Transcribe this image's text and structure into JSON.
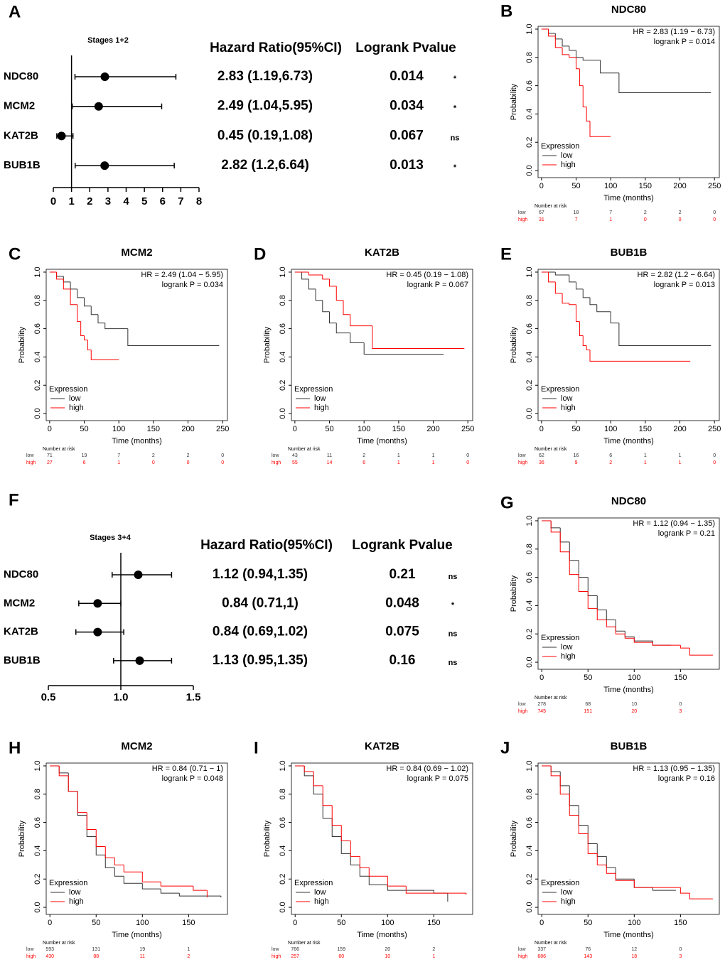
{
  "chart_data": [
    {
      "type": "forest",
      "panel": "A",
      "title": "Stages 1+2",
      "columns": [
        "Hazard Ratio(95%CI)",
        "Logrank Pvalue"
      ],
      "categories": [
        "NDC80",
        "MCM2",
        "KAT2B",
        "BUB1B"
      ],
      "values": [
        2.83,
        2.49,
        0.45,
        2.82
      ],
      "lower": [
        1.19,
        1.04,
        0.19,
        1.2
      ],
      "upper": [
        6.73,
        5.95,
        1.08,
        6.64
      ],
      "hr_labels": [
        "2.83 (1.19,6.73)",
        "2.49 (1.04,5.95)",
        "0.45 (0.19,1.08)",
        "2.82 (1.2,6.64)"
      ],
      "pvalues": [
        0.014,
        0.034,
        0.067,
        0.013
      ],
      "significance": [
        "*",
        "*",
        "ns",
        "*"
      ],
      "xlim": [
        0,
        8
      ],
      "xticks": [
        0,
        1,
        2,
        3,
        4,
        5,
        6,
        7,
        8
      ],
      "reference": 1,
      "color": "#000000"
    },
    {
      "type": "km",
      "panel": "B",
      "title": "NDC80",
      "annotations": [
        "HR = 2.83 (1.19 − 6.73)",
        "logrank P = 0.014"
      ],
      "xlabel": "Time (months)",
      "ylabel": "Probability",
      "legend_title": "Expression",
      "risk_title": "Number at risk",
      "xlim": [
        -5,
        257
      ],
      "xticks": [
        0,
        50,
        100,
        150,
        200,
        250
      ],
      "ylim": [
        -0.05,
        1.02
      ],
      "yticks": [
        {
          "value": 0,
          "label": "0.0"
        },
        0.2,
        0.4,
        0.6,
        0.8,
        {
          "value": 1,
          "label": "1.0"
        }
      ],
      "series": [
        {
          "name": "low",
          "color": "#333333",
          "x": [
            0,
            10,
            20,
            30,
            40,
            50,
            60,
            70,
            85,
            110,
            112,
            245
          ],
          "values": [
            1,
            0.97,
            0.93,
            0.88,
            0.85,
            0.8,
            0.78,
            0.78,
            0.69,
            0.69,
            0.55,
            0.55
          ],
          "at_risk": [
            67,
            18,
            7,
            2,
            2,
            0
          ]
        },
        {
          "name": "high",
          "color": "#ff0000",
          "x": [
            0,
            10,
            20,
            30,
            40,
            50,
            55,
            60,
            65,
            70,
            100
          ],
          "values": [
            1,
            0.95,
            0.87,
            0.82,
            0.8,
            0.72,
            0.6,
            0.45,
            0.35,
            0.24,
            0.24
          ],
          "at_risk": [
            31,
            7,
            1,
            0,
            0,
            0
          ]
        }
      ]
    },
    {
      "type": "km",
      "panel": "C",
      "title": "MCM2",
      "annotations": [
        "HR = 2.49 (1.04 − 5.95)",
        "logrank P = 0.034"
      ],
      "xlabel": "Time (months)",
      "ylabel": "Probability",
      "legend_title": "Expression",
      "risk_title": "Number at risk",
      "xlim": [
        -5,
        257
      ],
      "xticks": [
        0,
        50,
        100,
        150,
        200,
        250
      ],
      "ylim": [
        -0.05,
        1.02
      ],
      "yticks": [
        {
          "value": 0,
          "label": "0.0"
        },
        0.2,
        0.4,
        0.6,
        0.8,
        {
          "value": 1,
          "label": "1.0"
        }
      ],
      "series": [
        {
          "name": "low",
          "color": "#333333",
          "x": [
            0,
            10,
            20,
            30,
            40,
            50,
            60,
            70,
            80,
            100,
            110,
            113,
            245
          ],
          "values": [
            1,
            0.97,
            0.93,
            0.88,
            0.82,
            0.76,
            0.7,
            0.64,
            0.6,
            0.6,
            0.6,
            0.48,
            0.48
          ],
          "at_risk": [
            71,
            19,
            7,
            2,
            2,
            0
          ]
        },
        {
          "name": "high",
          "color": "#ff0000",
          "x": [
            0,
            10,
            20,
            30,
            40,
            45,
            50,
            55,
            60,
            100
          ],
          "values": [
            1,
            0.95,
            0.88,
            0.77,
            0.65,
            0.55,
            0.52,
            0.45,
            0.38,
            0.38
          ],
          "at_risk": [
            27,
            6,
            1,
            0,
            0,
            0
          ]
        }
      ]
    },
    {
      "type": "km",
      "panel": "D",
      "title": "KAT2B",
      "annotations": [
        "HR = 0.45 (0.19 − 1.08)",
        "logrank P = 0.067"
      ],
      "xlabel": "Time (months)",
      "ylabel": "Probability",
      "legend_title": "Expression",
      "risk_title": "Number at risk",
      "xlim": [
        -5,
        257
      ],
      "xticks": [
        0,
        50,
        100,
        150,
        200,
        250
      ],
      "ylim": [
        -0.05,
        1.02
      ],
      "yticks": [
        {
          "value": 0,
          "label": "0.0"
        },
        0.2,
        0.4,
        0.6,
        0.8,
        {
          "value": 1,
          "label": "1.0"
        }
      ],
      "series": [
        {
          "name": "low",
          "color": "#333333",
          "x": [
            0,
            10,
            20,
            30,
            40,
            50,
            60,
            70,
            80,
            100,
            215
          ],
          "values": [
            1,
            0.95,
            0.88,
            0.8,
            0.72,
            0.64,
            0.57,
            0.57,
            0.5,
            0.42,
            0.42
          ],
          "at_risk": [
            43,
            11,
            2,
            1,
            1,
            0
          ]
        },
        {
          "name": "high",
          "color": "#ff0000",
          "x": [
            0,
            20,
            40,
            50,
            60,
            70,
            80,
            100,
            110,
            112,
            245
          ],
          "values": [
            1,
            0.98,
            0.95,
            0.9,
            0.8,
            0.7,
            0.62,
            0.62,
            0.62,
            0.46,
            0.46
          ],
          "at_risk": [
            55,
            14,
            6,
            1,
            1,
            0
          ]
        }
      ]
    },
    {
      "type": "km",
      "panel": "E",
      "title": "BUB1B",
      "annotations": [
        "HR = 2.82 (1.2 − 6.64)",
        "logrank P = 0.013"
      ],
      "xlabel": "Time (months)",
      "ylabel": "Probability",
      "legend_title": "Expression",
      "risk_title": "Number at risk",
      "xlim": [
        -5,
        257
      ],
      "xticks": [
        0,
        50,
        100,
        150,
        200,
        250
      ],
      "ylim": [
        -0.05,
        1.02
      ],
      "yticks": [
        {
          "value": 0,
          "label": "0.0"
        },
        0.2,
        0.4,
        0.6,
        0.8,
        {
          "value": 1,
          "label": "1.0"
        }
      ],
      "series": [
        {
          "name": "low",
          "color": "#333333",
          "x": [
            0,
            20,
            40,
            50,
            60,
            70,
            80,
            100,
            110,
            112,
            245
          ],
          "values": [
            1,
            0.98,
            0.93,
            0.88,
            0.82,
            0.77,
            0.72,
            0.64,
            0.64,
            0.48,
            0.48
          ],
          "at_risk": [
            62,
            16,
            6,
            1,
            1,
            0
          ]
        },
        {
          "name": "high",
          "color": "#ff0000",
          "x": [
            0,
            10,
            20,
            30,
            40,
            50,
            55,
            60,
            65,
            70,
            215
          ],
          "values": [
            1,
            0.93,
            0.85,
            0.78,
            0.77,
            0.65,
            0.55,
            0.48,
            0.45,
            0.37,
            0.37
          ],
          "at_risk": [
            36,
            9,
            2,
            1,
            1,
            0
          ]
        }
      ]
    },
    {
      "type": "forest",
      "panel": "F",
      "title": "Stages 3+4",
      "columns": [
        "Hazard Ratio(95%CI)",
        "Logrank Pvalue"
      ],
      "categories": [
        "NDC80",
        "MCM2",
        "KAT2B",
        "BUB1B"
      ],
      "values": [
        1.12,
        0.84,
        0.84,
        1.13
      ],
      "lower": [
        0.94,
        0.71,
        0.69,
        0.95
      ],
      "upper": [
        1.35,
        1,
        1.02,
        1.35
      ],
      "hr_labels": [
        "1.12 (0.94,1.35)",
        "0.84 (0.71,1)",
        "0.84 (0.69,1.02)",
        "1.13 (0.95,1.35)"
      ],
      "pvalues": [
        0.21,
        0.048,
        0.075,
        0.16
      ],
      "significance": [
        "ns",
        "*",
        "ns",
        "ns"
      ],
      "xlim": [
        0.5,
        1.5
      ],
      "xticks": [
        0.5,
        {
          "value": 1,
          "label": "1.0"
        },
        1.5
      ],
      "reference": 1,
      "color": "#000000"
    },
    {
      "type": "km",
      "panel": "G",
      "title": "NDC80",
      "annotations": [
        "HR = 1.12 (0.94 − 1.35)",
        "logrank P = 0.21"
      ],
      "xlabel": "Time (months)",
      "ylabel": "Probability",
      "legend_title": "Expression",
      "risk_title": "Number at risk",
      "xlim": [
        -4,
        192
      ],
      "xticks": [
        0,
        50,
        100,
        150
      ],
      "ylim": [
        -0.05,
        1.02
      ],
      "yticks": [
        {
          "value": 0,
          "label": "0.0"
        },
        0.2,
        0.4,
        0.6,
        0.8,
        {
          "value": 1,
          "label": "1.0"
        }
      ],
      "series": [
        {
          "name": "low",
          "color": "#333333",
          "x": [
            0,
            10,
            20,
            30,
            40,
            50,
            60,
            70,
            80,
            90,
            100,
            120,
            140
          ],
          "values": [
            1,
            0.95,
            0.85,
            0.72,
            0.6,
            0.47,
            0.37,
            0.3,
            0.22,
            0.18,
            0.15,
            0.12,
            0.12
          ],
          "at_risk": [
            278,
            68,
            10,
            0
          ]
        },
        {
          "name": "high",
          "color": "#ff0000",
          "x": [
            0,
            10,
            20,
            30,
            40,
            50,
            60,
            70,
            80,
            90,
            100,
            120,
            150,
            160,
            185
          ],
          "values": [
            1,
            0.92,
            0.78,
            0.62,
            0.5,
            0.38,
            0.3,
            0.25,
            0.2,
            0.17,
            0.14,
            0.12,
            0.1,
            0.05,
            0.05
          ],
          "at_risk": [
            745,
            151,
            20,
            3
          ]
        }
      ]
    },
    {
      "type": "km",
      "panel": "H",
      "title": "MCM2",
      "annotations": [
        "HR = 0.84 (0.71 − 1)",
        "logrank P = 0.048"
      ],
      "xlabel": "Time (months)",
      "ylabel": "Probability",
      "legend_title": "Expression",
      "risk_title": "Number at risk",
      "xlim": [
        -4,
        192
      ],
      "xticks": [
        0,
        50,
        100,
        150
      ],
      "ylim": [
        -0.05,
        1.02
      ],
      "yticks": [
        {
          "value": 0,
          "label": "0.0"
        },
        0.2,
        0.4,
        0.6,
        0.8,
        {
          "value": 1,
          "label": "1.0"
        }
      ],
      "series": [
        {
          "name": "low",
          "color": "#333333",
          "x": [
            0,
            10,
            20,
            30,
            40,
            50,
            60,
            70,
            80,
            100,
            120,
            140,
            185
          ],
          "values": [
            1,
            0.95,
            0.82,
            0.65,
            0.5,
            0.37,
            0.28,
            0.22,
            0.17,
            0.13,
            0.1,
            0.08,
            0.07
          ],
          "at_risk": [
            593,
            131,
            19,
            1
          ]
        },
        {
          "name": "high",
          "color": "#ff0000",
          "x": [
            0,
            10,
            20,
            30,
            40,
            50,
            60,
            70,
            80,
            100,
            120,
            155,
            170
          ],
          "values": [
            1,
            0.93,
            0.82,
            0.67,
            0.55,
            0.43,
            0.35,
            0.3,
            0.25,
            0.18,
            0.15,
            0.12,
            0.07
          ],
          "at_risk": [
            430,
            88,
            11,
            2
          ]
        }
      ]
    },
    {
      "type": "km",
      "panel": "I",
      "title": "KAT2B",
      "annotations": [
        "HR = 0.84 (0.69 − 1.02)",
        "logrank P = 0.075"
      ],
      "xlabel": "Time (months)",
      "ylabel": "Probability",
      "legend_title": "Expression",
      "risk_title": "Number at risk",
      "xlim": [
        -4,
        192
      ],
      "xticks": [
        0,
        50,
        100,
        150
      ],
      "ylim": [
        -0.05,
        1.02
      ],
      "yticks": [
        {
          "value": 0,
          "label": "0.0"
        },
        0.2,
        0.4,
        0.6,
        0.8,
        {
          "value": 1,
          "label": "1.0"
        }
      ],
      "series": [
        {
          "name": "low",
          "color": "#333333",
          "x": [
            0,
            10,
            20,
            30,
            40,
            50,
            60,
            70,
            80,
            100,
            150,
            165
          ],
          "values": [
            1,
            0.93,
            0.8,
            0.63,
            0.5,
            0.38,
            0.3,
            0.22,
            0.16,
            0.12,
            0.1,
            0.04
          ],
          "at_risk": [
            766,
            159,
            20,
            2
          ]
        },
        {
          "name": "high",
          "color": "#ff0000",
          "x": [
            0,
            10,
            20,
            30,
            40,
            50,
            60,
            70,
            80,
            100,
            120,
            185
          ],
          "values": [
            1,
            0.96,
            0.86,
            0.72,
            0.58,
            0.47,
            0.36,
            0.28,
            0.22,
            0.15,
            0.1,
            0.09
          ],
          "at_risk": [
            257,
            60,
            10,
            1
          ]
        }
      ]
    },
    {
      "type": "km",
      "panel": "J",
      "title": "BUB1B",
      "annotations": [
        "HR = 1.13 (0.95 − 1.35)",
        "logrank P = 0.16"
      ],
      "xlabel": "Time (months)",
      "ylabel": "Probability",
      "legend_title": "Expression",
      "risk_title": "Number at risk",
      "xlim": [
        -4,
        192
      ],
      "xticks": [
        0,
        50,
        100,
        150
      ],
      "ylim": [
        -0.05,
        1.02
      ],
      "yticks": [
        {
          "value": 0,
          "label": "0.0"
        },
        0.2,
        0.4,
        0.6,
        0.8,
        {
          "value": 1,
          "label": "1.0"
        }
      ],
      "series": [
        {
          "name": "low",
          "color": "#333333",
          "x": [
            0,
            10,
            20,
            30,
            40,
            50,
            60,
            70,
            80,
            100,
            120,
            145
          ],
          "values": [
            1,
            0.96,
            0.86,
            0.72,
            0.58,
            0.45,
            0.36,
            0.28,
            0.2,
            0.14,
            0.12,
            0.12
          ],
          "at_risk": [
            337,
            76,
            12,
            0
          ]
        },
        {
          "name": "high",
          "color": "#ff0000",
          "x": [
            0,
            10,
            20,
            30,
            40,
            50,
            60,
            70,
            80,
            100,
            150,
            160,
            185
          ],
          "values": [
            1,
            0.93,
            0.8,
            0.65,
            0.52,
            0.38,
            0.3,
            0.24,
            0.19,
            0.14,
            0.1,
            0.06,
            0.06
          ],
          "at_risk": [
            686,
            143,
            18,
            3
          ]
        }
      ]
    }
  ]
}
